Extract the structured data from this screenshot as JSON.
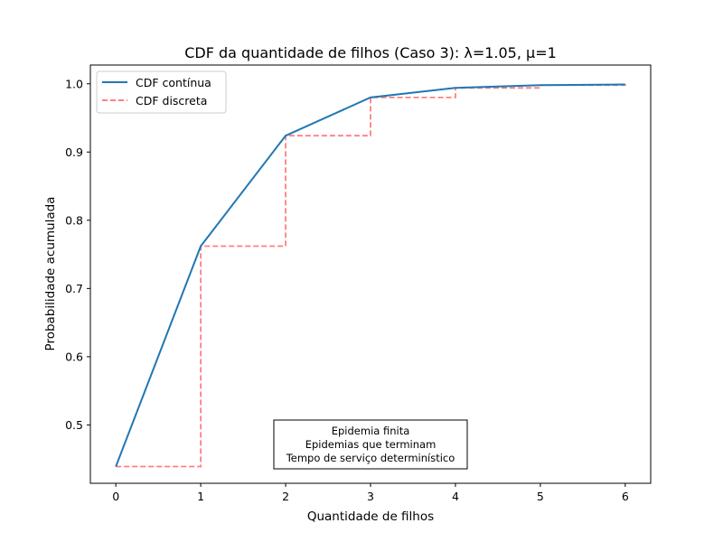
{
  "chart_data": {
    "type": "line",
    "title": "CDF da quantidade de filhos (Caso 3): λ=1.05, μ=1",
    "xlabel": "Quantidade de filhos",
    "ylabel": "Probabilidade acumulada",
    "xlim": [
      -0.3,
      6.3
    ],
    "ylim": [
      0.4145,
      1.0275
    ],
    "x_ticks": [
      0,
      1,
      2,
      3,
      4,
      5,
      6
    ],
    "y_ticks": [
      0.5,
      0.6,
      0.7,
      0.8,
      0.9,
      1.0
    ],
    "x_tick_labels": [
      "0",
      "1",
      "2",
      "3",
      "4",
      "5",
      "6"
    ],
    "y_tick_labels": [
      "0.5",
      "0.6",
      "0.7",
      "0.8",
      "0.9",
      "1.0"
    ],
    "grid": false,
    "legend_position": "top-left",
    "x": [
      0,
      1,
      2,
      3,
      4,
      5,
      6
    ],
    "series": [
      {
        "name": "CDF contínua",
        "style": "solid",
        "color": "#1f77b4",
        "values": [
          0.439,
          0.762,
          0.924,
          0.98,
          0.994,
          0.998,
          0.999
        ]
      },
      {
        "name": "CDF discreta",
        "style": "dashed-step",
        "color": "#ff7f7f",
        "values": [
          0.439,
          0.762,
          0.924,
          0.98,
          0.994,
          0.998,
          0.999
        ]
      }
    ],
    "annotation": {
      "lines": [
        "Epidemia finita",
        "Epidemias que terminam",
        "Tempo de serviço determinístico"
      ]
    }
  }
}
